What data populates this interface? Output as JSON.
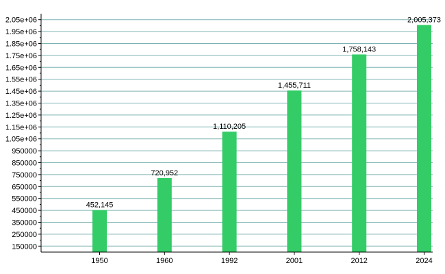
{
  "chart_data": {
    "type": "bar",
    "categories": [
      "1950",
      "1960",
      "1992",
      "2001",
      "2012",
      "2024"
    ],
    "values": [
      452145,
      720952,
      1110205,
      1455711,
      1758143,
      2005373
    ],
    "value_labels": [
      "452,145",
      "720,952",
      "1,110,205",
      "1,455,711",
      "1,758,143",
      "2,005,373"
    ],
    "y_ticks": [
      150000,
      250000,
      350000,
      450000,
      550000,
      650000,
      750000,
      850000,
      950000,
      1050000,
      1150000,
      1250000,
      1350000,
      1450000,
      1550000,
      1650000,
      1750000,
      1850000,
      1950000,
      2050000
    ],
    "y_tick_labels": [
      "150000",
      "250000",
      "350000",
      "450000",
      "550000",
      "650000",
      "750000",
      "850000",
      "950000",
      "1.05e+06",
      "1.15e+06",
      "1.25e+06",
      "1.35e+06",
      "1.45e+06",
      "1.55e+06",
      "1.65e+06",
      "1.75e+06",
      "1.85e+06",
      "1.95e+06",
      "2.05e+06"
    ],
    "ylim": [
      100000,
      2100000
    ],
    "grid": true,
    "title": "",
    "xlabel": "",
    "ylabel": "",
    "colors": {
      "bar": "#33cc66",
      "grid": "#7fb3b3",
      "axis": "#000000"
    }
  }
}
